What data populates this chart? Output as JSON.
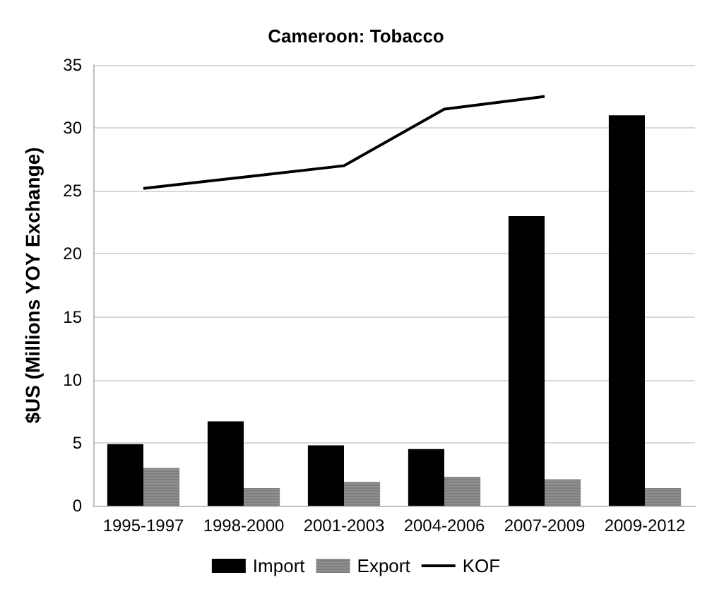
{
  "chart_data": {
    "type": "bar",
    "title": "Cameroon: Tobacco",
    "ylabel": "$US (Millions YOY Exchange)",
    "categories": [
      "1995-1997",
      "1998-2000",
      "2001-2003",
      "2004-2006",
      "2007-2009",
      "2009-2012"
    ],
    "series": [
      {
        "name": "Import",
        "color": "#000000",
        "values": [
          4.9,
          6.7,
          4.8,
          4.5,
          23.0,
          31.0
        ]
      },
      {
        "name": "Export",
        "color": "#7f7f7f",
        "values": [
          3.0,
          1.4,
          1.9,
          2.3,
          2.1,
          1.4
        ]
      },
      {
        "name": "KOF",
        "type": "line",
        "color": "#000000",
        "values": [
          25.2,
          26.1,
          27.0,
          31.5,
          32.5,
          null
        ]
      }
    ],
    "ylim": [
      0,
      35
    ],
    "yticks": [
      0,
      5,
      10,
      15,
      20,
      25,
      30,
      35
    ],
    "grid": "y",
    "legend": "bottom",
    "marker": "none"
  }
}
